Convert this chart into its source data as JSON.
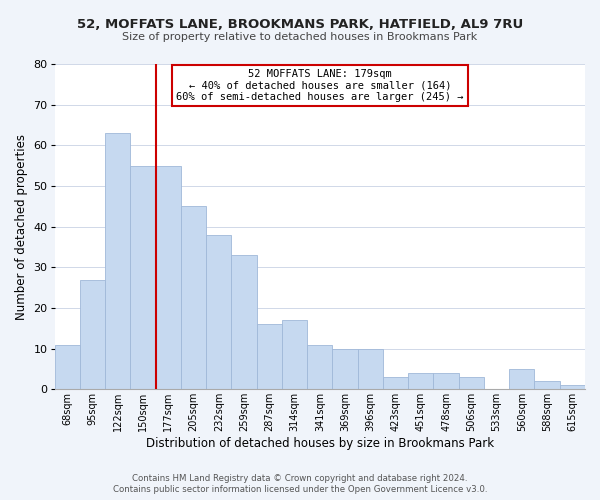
{
  "title1": "52, MOFFATS LANE, BROOKMANS PARK, HATFIELD, AL9 7RU",
  "title2": "Size of property relative to detached houses in Brookmans Park",
  "xlabel": "Distribution of detached houses by size in Brookmans Park",
  "ylabel": "Number of detached properties",
  "footer1": "Contains HM Land Registry data © Crown copyright and database right 2024.",
  "footer2": "Contains public sector information licensed under the Open Government Licence v3.0.",
  "bar_labels": [
    "68sqm",
    "95sqm",
    "122sqm",
    "150sqm",
    "177sqm",
    "205sqm",
    "232sqm",
    "259sqm",
    "287sqm",
    "314sqm",
    "341sqm",
    "369sqm",
    "396sqm",
    "423sqm",
    "451sqm",
    "478sqm",
    "506sqm",
    "533sqm",
    "560sqm",
    "588sqm",
    "615sqm"
  ],
  "bar_values": [
    11,
    27,
    63,
    55,
    55,
    45,
    38,
    33,
    16,
    17,
    11,
    10,
    10,
    3,
    4,
    4,
    3,
    0,
    5,
    2,
    1
  ],
  "bar_color": "#c6d9f0",
  "bar_edge_color": "#a0b8d8",
  "grid_color": "#d0d8e8",
  "bg_color": "#f0f4fa",
  "plot_bg_color": "#ffffff",
  "annotation_text_line1": "52 MOFFATS LANE: 179sqm",
  "annotation_text_line2": "← 40% of detached houses are smaller (164)",
  "annotation_text_line3": "60% of semi-detached houses are larger (245) →",
  "annotation_box_color": "#ffffff",
  "annotation_line_color": "#cc0000",
  "red_line_index": 3.5,
  "ylim": [
    0,
    80
  ],
  "yticks": [
    0,
    10,
    20,
    30,
    40,
    50,
    60,
    70,
    80
  ]
}
